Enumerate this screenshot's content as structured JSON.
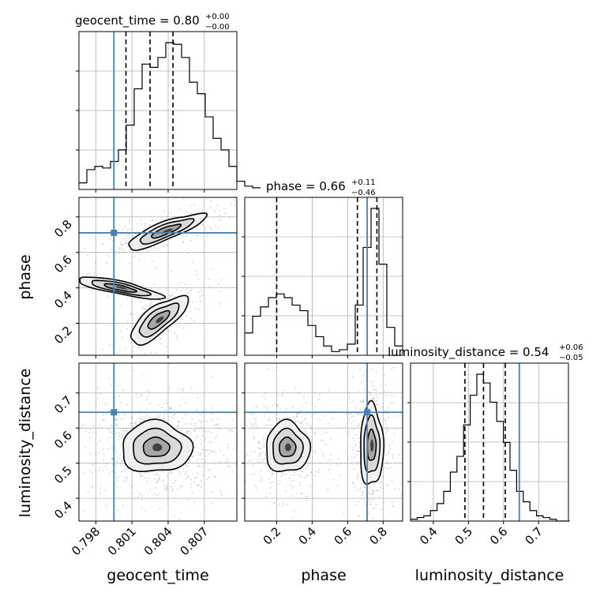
{
  "chart_data": {
    "type": "corner",
    "parameters": [
      "geocent_time",
      "phase",
      "luminosity_distance"
    ],
    "truths": {
      "geocent_time": 0.7995,
      "phase": 0.71,
      "luminosity_distance": 0.645
    },
    "colors": {
      "truth": "#4682b4",
      "hist": "#000000",
      "grid": "#b0b0b0",
      "contour": "#000000"
    },
    "grid": true,
    "titles": [
      {
        "param": "geocent_time",
        "label": "geocent_time = 0.80",
        "sup": "+0.00",
        "sub": "−0.00"
      },
      {
        "param": "phase",
        "label": "phase = 0.66",
        "sup": "+0.11",
        "sub": "−0.46"
      },
      {
        "param": "luminosity_distance",
        "label": "luminosity_distance = 0.54",
        "sup": "+0.06",
        "sub": "−0.05"
      }
    ],
    "axis_labels": {
      "x": [
        "geocent_time",
        "phase",
        "luminosity_distance"
      ],
      "y": [
        "phase",
        "luminosity_distance"
      ]
    },
    "ranges": {
      "geocent_time": [
        0.7966,
        0.8097
      ],
      "phase": [
        0.02,
        0.91
      ],
      "luminosity_distance": [
        0.335,
        0.785
      ]
    },
    "ticks": {
      "geocent_time": [
        "0.798",
        "0.801",
        "0.804",
        "0.807"
      ],
      "phase": [
        "0.2",
        "0.4",
        "0.6",
        "0.8"
      ],
      "luminosity_distance": [
        "0.4",
        "0.5",
        "0.6",
        "0.7"
      ]
    },
    "tick_values": {
      "geocent_time": [
        0.798,
        0.801,
        0.804,
        0.807
      ],
      "phase": [
        0.2,
        0.4,
        0.6,
        0.8
      ],
      "luminosity_distance": [
        0.4,
        0.5,
        0.6,
        0.7
      ]
    },
    "quantiles": {
      "geocent_time": [
        0.8005,
        0.8025,
        0.8044
      ],
      "phase": [
        0.2,
        0.655,
        0.765
      ],
      "luminosity_distance": [
        0.49,
        0.543,
        0.605
      ]
    },
    "histograms": {
      "geocent_time": {
        "edges_start": 0.7966,
        "bin_width": 0.000655,
        "counts": [
          0.04,
          0.12,
          0.14,
          0.13,
          0.17,
          0.24,
          0.39,
          0.61,
          0.76,
          0.74,
          0.8,
          0.89,
          0.88,
          0.8,
          0.65,
          0.58,
          0.44,
          0.31,
          0.24,
          0.14,
          0.05,
          0.02,
          0.01
        ]
      },
      "phase": {
        "edges_start": 0.02,
        "bin_width": 0.0445,
        "counts": [
          0.12,
          0.21,
          0.26,
          0.31,
          0.33,
          0.31,
          0.27,
          0.24,
          0.16,
          0.1,
          0.05,
          0.02,
          0.03,
          0.06,
          0.27,
          0.58,
          0.79,
          0.49,
          0.15,
          0.05
        ]
      },
      "luminosity_distance": {
        "edges_start": 0.335,
        "bin_width": 0.0189,
        "counts": [
          0.01,
          0.02,
          0.03,
          0.06,
          0.1,
          0.17,
          0.28,
          0.37,
          0.55,
          0.72,
          0.84,
          0.79,
          0.68,
          0.57,
          0.45,
          0.29,
          0.17,
          0.11,
          0.06,
          0.03,
          0.02,
          0.01,
          0.0,
          0.0
        ]
      }
    }
  }
}
